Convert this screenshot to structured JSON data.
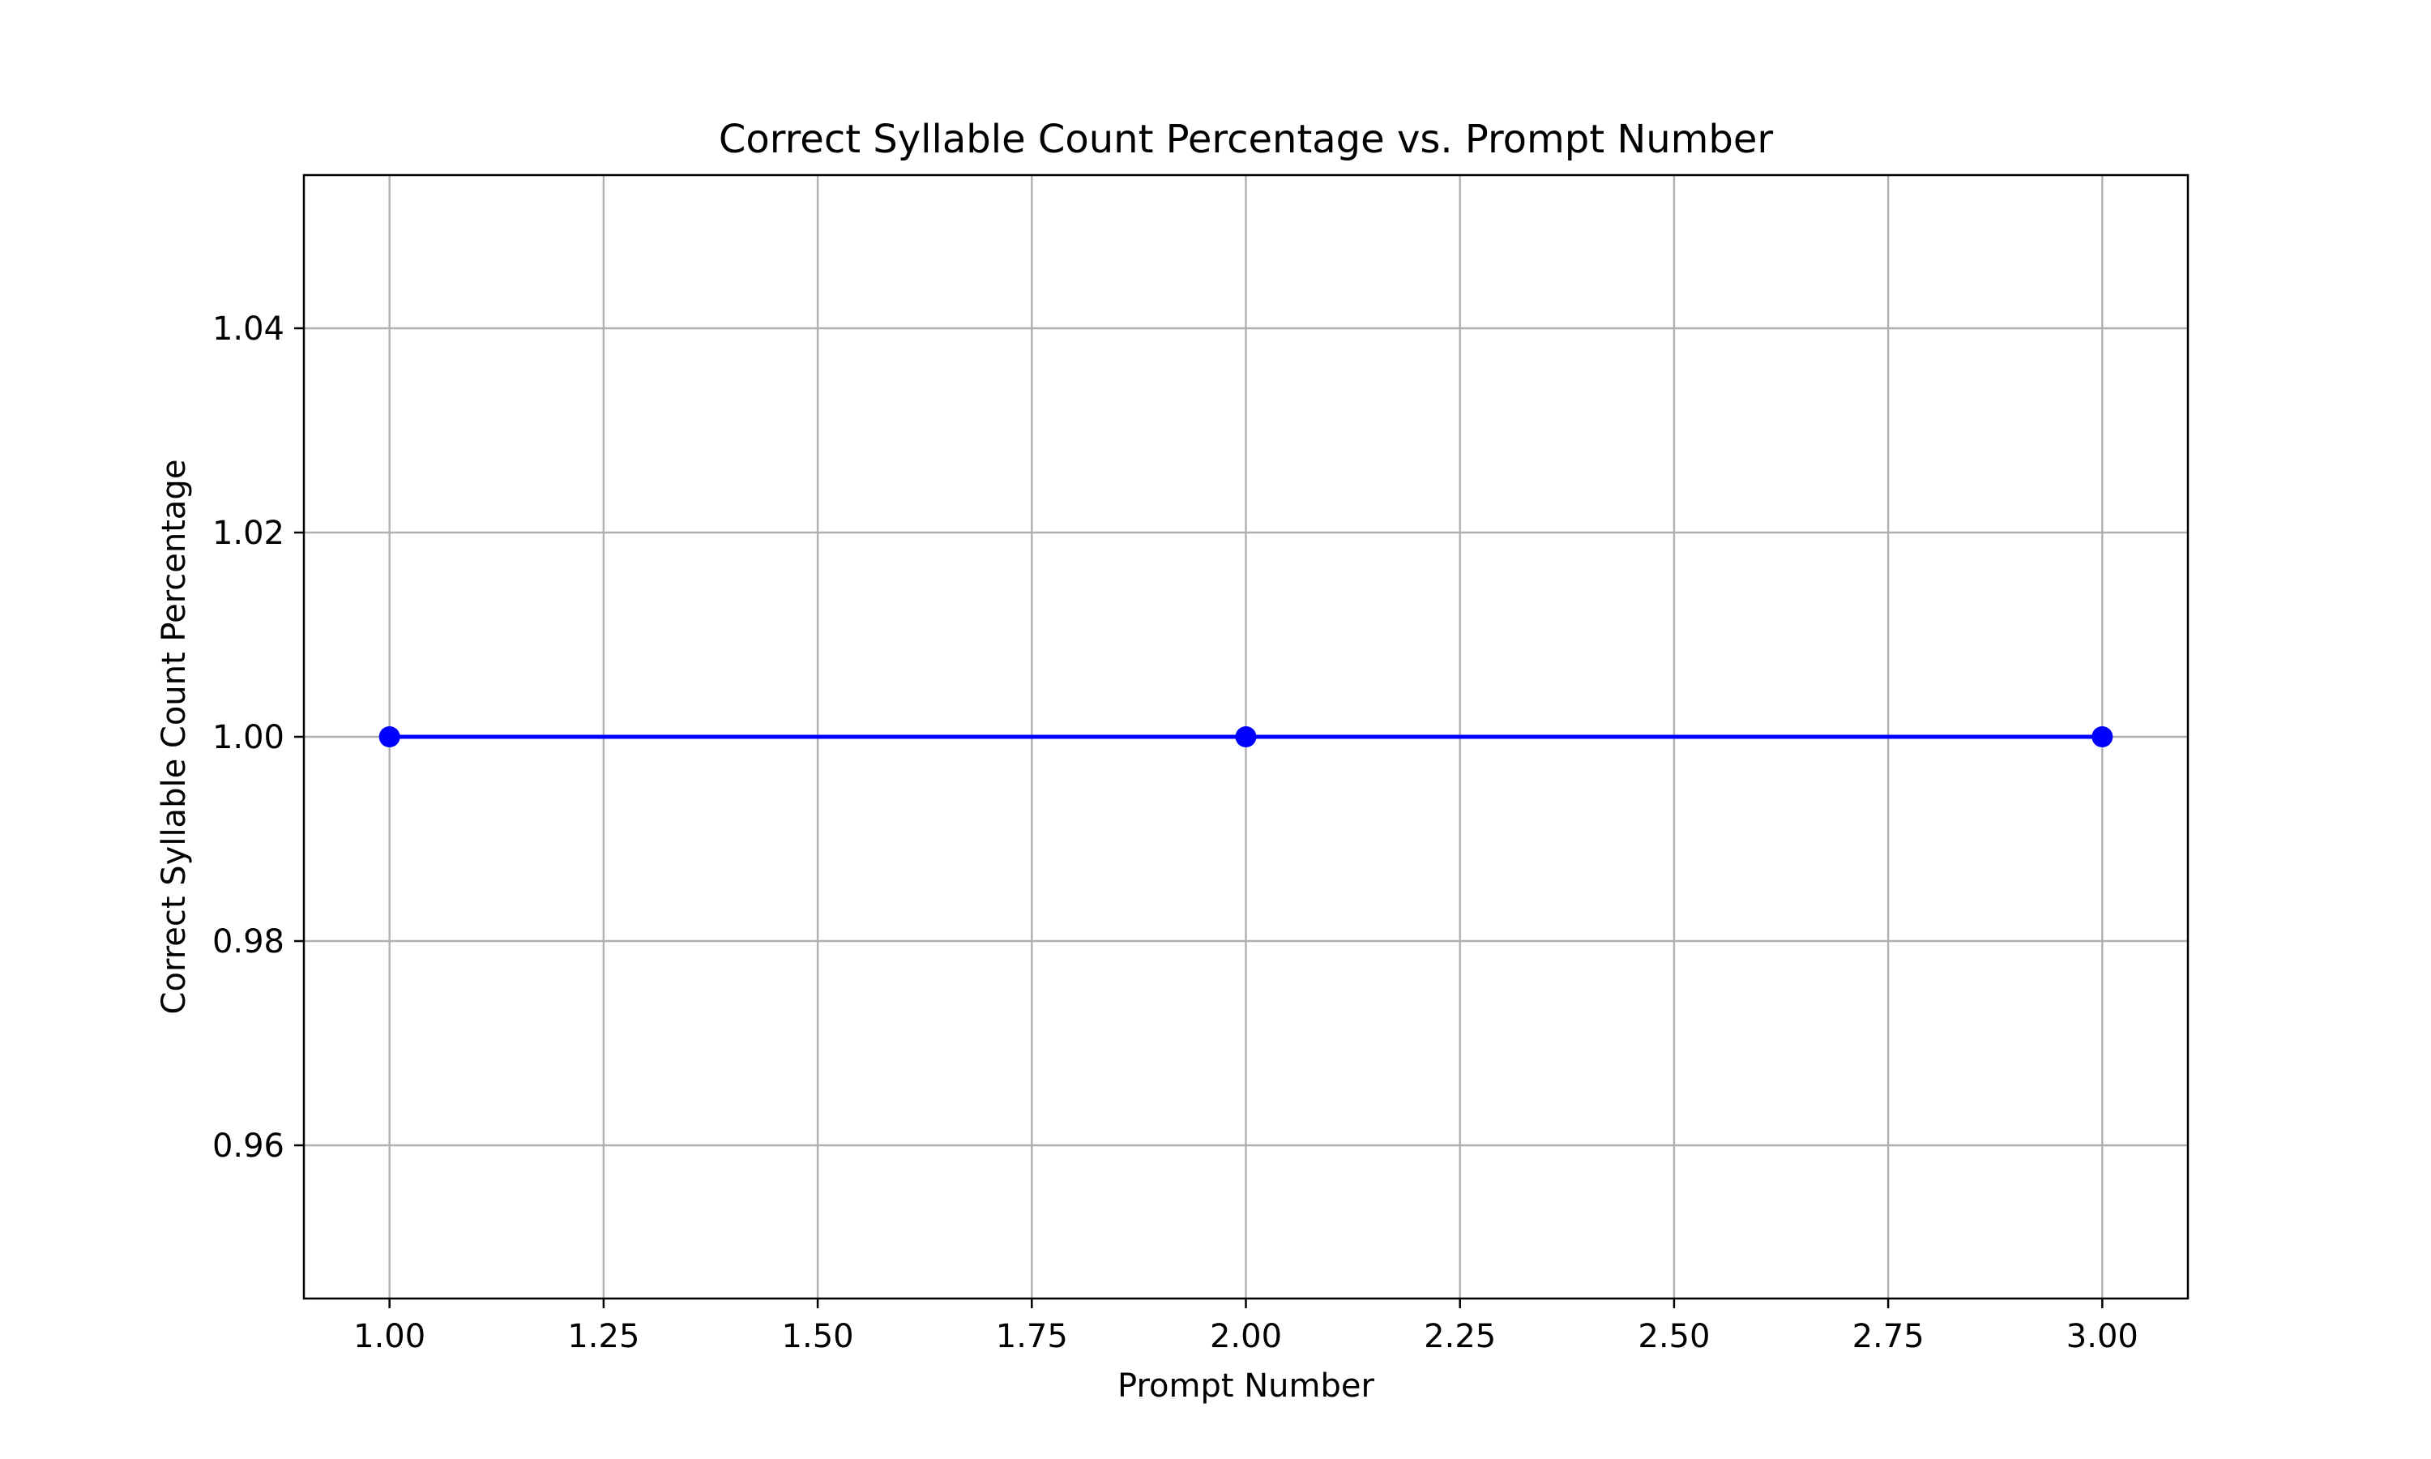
{
  "chart_data": {
    "type": "line",
    "title": "Correct Syllable Count Percentage vs. Prompt Number",
    "xlabel": "Prompt Number",
    "ylabel": "Correct Syllable Count Percentage",
    "x": [
      1,
      2,
      3
    ],
    "series": [
      {
        "values": [
          1.0,
          1.0,
          1.0
        ],
        "color": "#0000ff",
        "marker": "circle"
      }
    ],
    "xlim": [
      0.9,
      3.1
    ],
    "ylim": [
      0.945,
      1.055
    ],
    "xticks": [
      "1.00",
      "1.25",
      "1.50",
      "1.75",
      "2.00",
      "2.25",
      "2.50",
      "2.75",
      "3.00"
    ],
    "yticks": [
      "0.96",
      "0.98",
      "1.00",
      "1.02",
      "1.04"
    ],
    "grid": true,
    "legend": false
  }
}
